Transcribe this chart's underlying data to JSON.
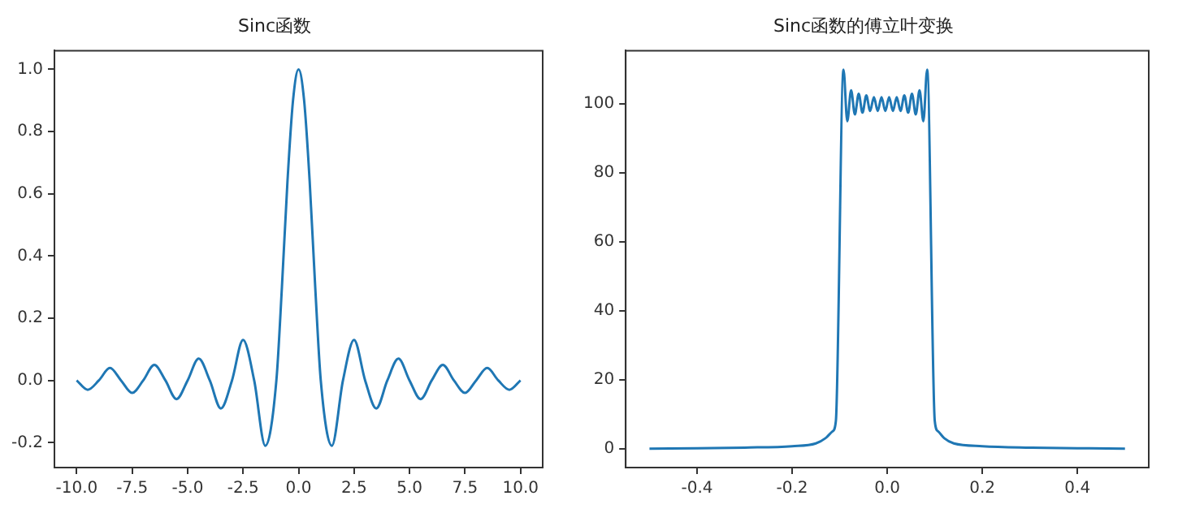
{
  "chart_data": [
    {
      "type": "line",
      "title": "Sinc函数",
      "grid": false,
      "legend": false,
      "marker": "none",
      "line_style": "solid",
      "xlim": [
        -11,
        11
      ],
      "ylim": [
        -0.28,
        1.06
      ],
      "xticks": [
        {
          "value": -10,
          "label": "-10.0"
        },
        {
          "value": -7.5,
          "label": "-7.5"
        },
        {
          "value": -5,
          "label": "-5.0"
        },
        {
          "value": -2.5,
          "label": "-2.5"
        },
        {
          "value": 0,
          "label": "0.0"
        },
        {
          "value": 2.5,
          "label": "2.5"
        },
        {
          "value": 5,
          "label": "5.0"
        },
        {
          "value": 7.5,
          "label": "7.5"
        },
        {
          "value": 10,
          "label": "10.0"
        }
      ],
      "yticks": [
        {
          "value": -0.2,
          "label": "-0.2"
        },
        {
          "value": 0,
          "label": "0.0"
        },
        {
          "value": 0.2,
          "label": "0.2"
        },
        {
          "value": 0.4,
          "label": "0.4"
        },
        {
          "value": 0.6,
          "label": "0.6"
        },
        {
          "value": 0.8,
          "label": "0.8"
        },
        {
          "value": 1,
          "label": "1.0"
        }
      ],
      "series": [
        {
          "color": "#1f77b4",
          "x": [
            -10,
            -9.5,
            -9,
            -8.5,
            -8,
            -7.5,
            -7,
            -6.5,
            -6,
            -5.5,
            -5,
            -4.5,
            -4,
            -3.5,
            -3,
            -2.5,
            -2,
            -1.5,
            -1,
            -0.75,
            -0.5,
            -0.25,
            0,
            0.25,
            0.5,
            0.75,
            1,
            1.5,
            2,
            2.5,
            3,
            3.5,
            4,
            4.5,
            5,
            5.5,
            6,
            6.5,
            7,
            7.5,
            8,
            8.5,
            9,
            9.5,
            10
          ],
          "values": [
            0,
            -0.03,
            0,
            0.04,
            0,
            -0.04,
            0,
            0.05,
            0,
            -0.06,
            0,
            0.07,
            0,
            -0.09,
            0,
            0.13,
            0,
            -0.21,
            0,
            0.3,
            0.64,
            0.9,
            1,
            0.9,
            0.64,
            0.3,
            0,
            -0.21,
            0,
            0.13,
            0,
            -0.09,
            0,
            0.07,
            0,
            -0.06,
            0,
            0.05,
            0,
            -0.04,
            0,
            0.04,
            0,
            -0.03,
            0
          ]
        }
      ]
    },
    {
      "type": "line",
      "title": "Sinc函数的傅立叶变换",
      "grid": false,
      "legend": false,
      "marker": "none",
      "line_style": "solid",
      "xlim": [
        -0.55,
        0.55
      ],
      "ylim": [
        -5.5,
        115.5
      ],
      "xticks": [
        {
          "value": -0.4,
          "label": "-0.4"
        },
        {
          "value": -0.2,
          "label": "-0.2"
        },
        {
          "value": 0,
          "label": "0.0"
        },
        {
          "value": 0.2,
          "label": "0.2"
        },
        {
          "value": 0.4,
          "label": "0.4"
        }
      ],
      "yticks": [
        0,
        20,
        40,
        60,
        80,
        100
      ],
      "series": [
        {
          "color": "#1f77b4",
          "x": [
            -0.5,
            -0.4,
            -0.3,
            -0.2,
            -0.15,
            -0.13,
            -0.115,
            -0.108,
            -0.092,
            -0.084,
            -0.076,
            -0.068,
            -0.06,
            -0.052,
            -0.044,
            -0.036,
            -0.028,
            -0.02,
            -0.012,
            -0.004,
            0.004,
            0.012,
            0.02,
            0.028,
            0.036,
            0.044,
            0.052,
            0.06,
            0.068,
            0.076,
            0.084,
            0.1,
            0.107,
            0.12,
            0.14,
            0.2,
            0.3,
            0.4,
            0.5
          ],
          "values": [
            0,
            0.1,
            0.3,
            0.7,
            1.5,
            3,
            5,
            8,
            110,
            95,
            104,
            97,
            103,
            97.5,
            102.5,
            98,
            102,
            98,
            102,
            98,
            102,
            98,
            102,
            98,
            102.5,
            97.5,
            103,
            97,
            104,
            95,
            110,
            8,
            5,
            3,
            1.5,
            0.7,
            0.3,
            0.1,
            0
          ]
        }
      ]
    }
  ]
}
